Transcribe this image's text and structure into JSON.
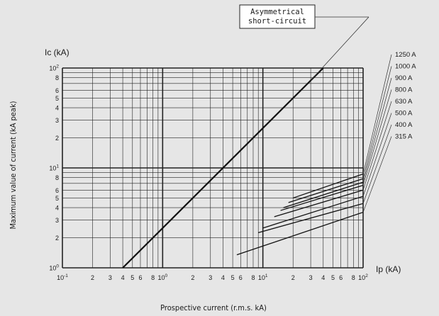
{
  "chart_data": {
    "type": "line",
    "x_scale": "log",
    "y_scale": "log",
    "xlim": [
      0.1,
      100
    ],
    "ylim": [
      1,
      100
    ],
    "y_unit_label": "Ic (kA)",
    "x_unit_label": "Ip (kA)",
    "ylabel": "Maximum value of current (kA peak)",
    "xlabel": "Prospective current (r.m.s. kA)",
    "x_tick_labels": [
      {
        "v": 0.1,
        "base": "10",
        "exp": "-1"
      },
      {
        "v": 0.2,
        "text": "2"
      },
      {
        "v": 0.3,
        "text": "3"
      },
      {
        "v": 0.4,
        "text": "4"
      },
      {
        "v": 0.5,
        "text": "5"
      },
      {
        "v": 0.6,
        "text": "6"
      },
      {
        "v": 0.8,
        "text": "8"
      },
      {
        "v": 1,
        "base": "10",
        "exp": "0"
      },
      {
        "v": 2,
        "text": "2"
      },
      {
        "v": 3,
        "text": "3"
      },
      {
        "v": 4,
        "text": "4"
      },
      {
        "v": 5,
        "text": "5"
      },
      {
        "v": 6,
        "text": "6"
      },
      {
        "v": 8,
        "text": "8"
      },
      {
        "v": 10,
        "base": "10",
        "exp": "1"
      },
      {
        "v": 20,
        "text": "2"
      },
      {
        "v": 30,
        "text": "3"
      },
      {
        "v": 40,
        "text": "4"
      },
      {
        "v": 50,
        "text": "5"
      },
      {
        "v": 60,
        "text": "6"
      },
      {
        "v": 80,
        "text": "8"
      },
      {
        "v": 100,
        "base": "10",
        "exp": "2"
      }
    ],
    "y_tick_labels": [
      {
        "v": 1,
        "base": "10",
        "exp": "0"
      },
      {
        "v": 2,
        "text": "2"
      },
      {
        "v": 3,
        "text": "3"
      },
      {
        "v": 4,
        "text": "4"
      },
      {
        "v": 5,
        "text": "5"
      },
      {
        "v": 6,
        "text": "6"
      },
      {
        "v": 8,
        "text": "8"
      },
      {
        "v": 10,
        "base": "10",
        "exp": "1"
      },
      {
        "v": 20,
        "text": "2"
      },
      {
        "v": 30,
        "text": "3"
      },
      {
        "v": 40,
        "text": "4"
      },
      {
        "v": 50,
        "text": "5"
      },
      {
        "v": 60,
        "text": "6"
      },
      {
        "v": 80,
        "text": "8"
      },
      {
        "v": 100,
        "base": "10",
        "exp": "2"
      }
    ],
    "asymmetrical_line": {
      "x": [
        0.4,
        40
      ],
      "y": [
        1,
        100
      ]
    },
    "annotation": {
      "lines": [
        "Asymmetrical",
        "short-circuit"
      ]
    },
    "series": [
      {
        "name": "1250 A",
        "x": [
          20,
          100
        ],
        "y": [
          5.0,
          8.7
        ]
      },
      {
        "name": "1000 A",
        "x": [
          18,
          100
        ],
        "y": [
          4.5,
          7.8
        ]
      },
      {
        "name": "900 A",
        "x": [
          16,
          100
        ],
        "y": [
          4.0,
          7.2
        ]
      },
      {
        "name": "800 A",
        "x": [
          15,
          100
        ],
        "y": [
          3.75,
          6.7
        ]
      },
      {
        "name": "630 A",
        "x": [
          13,
          100
        ],
        "y": [
          3.25,
          6.0
        ]
      },
      {
        "name": "500 A",
        "x": [
          10,
          100
        ],
        "y": [
          2.5,
          5.2
        ]
      },
      {
        "name": "400 A",
        "x": [
          9,
          100
        ],
        "y": [
          2.25,
          4.4
        ]
      },
      {
        "name": "315 A",
        "x": [
          5.5,
          100
        ],
        "y": [
          1.35,
          3.6
        ]
      }
    ]
  }
}
